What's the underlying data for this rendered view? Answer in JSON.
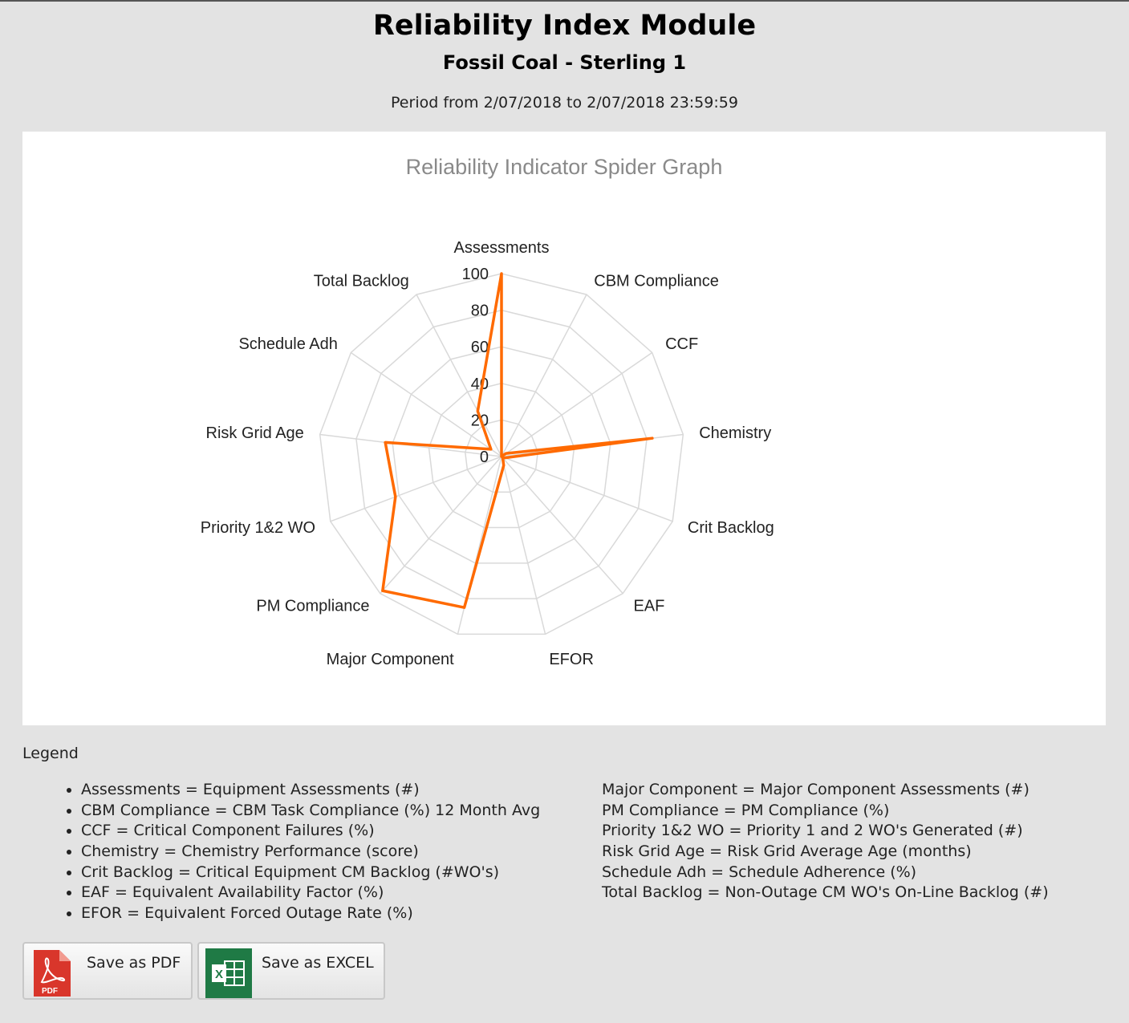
{
  "header": {
    "title": "Reliability Index Module",
    "subtitle": "Fossil Coal - Sterling 1",
    "period": "Period from 2/07/2018 to 2/07/2018 23:59:59"
  },
  "chart_data": {
    "type": "radar",
    "title": "Reliability Indicator Spider Graph",
    "categories": [
      "Assessments",
      "CBM Compliance",
      "CCF",
      "Chemistry",
      "Crit Backlog",
      "EAF",
      "EFOR",
      "Major Component",
      "PM Compliance",
      "Priority 1&2 WO",
      "Risk Grid Age",
      "Schedule Adh",
      "Total Backlog"
    ],
    "series": [
      {
        "values": [
          100,
          0,
          3,
          83,
          2,
          1,
          5,
          85,
          98,
          62,
          64,
          7,
          28
        ]
      }
    ],
    "ticks": [
      "0",
      "20",
      "40",
      "60",
      "80",
      "100"
    ],
    "range": [
      0,
      100
    ],
    "series_color": "#ff6a00",
    "grid_color": "#d9d9d9"
  },
  "legend": {
    "title": "Legend",
    "left": [
      "Assessments = Equipment Assessments (#)",
      "CBM Compliance = CBM Task Compliance (%) 12 Month Avg",
      "CCF = Critical Component Failures (%)",
      "Chemistry = Chemistry Performance (score)",
      "Crit Backlog = Critical Equipment CM Backlog (#WO's)",
      "EAF = Equivalent Availability Factor (%)",
      "EFOR = Equivalent Forced Outage Rate (%)"
    ],
    "right": [
      "Major Component = Major Component Assessments (#)",
      "PM Compliance = PM Compliance (%)",
      "Priority 1&2 WO = Priority 1 and 2 WO's Generated (#)",
      "Risk Grid Age = Risk Grid Average Age (months)",
      "Schedule Adh = Schedule Adherence (%)",
      "Total Backlog = Non-Outage CM WO's On-Line Backlog (#)"
    ]
  },
  "buttons": {
    "pdf": {
      "label": "Save as PDF",
      "icon": "pdf-file-icon",
      "icon_text": "PDF",
      "color": "#d9362b"
    },
    "excel": {
      "label": "Save as EXCEL",
      "icon": "excel-file-icon",
      "icon_text": "X",
      "color": "#1f7a45"
    }
  }
}
